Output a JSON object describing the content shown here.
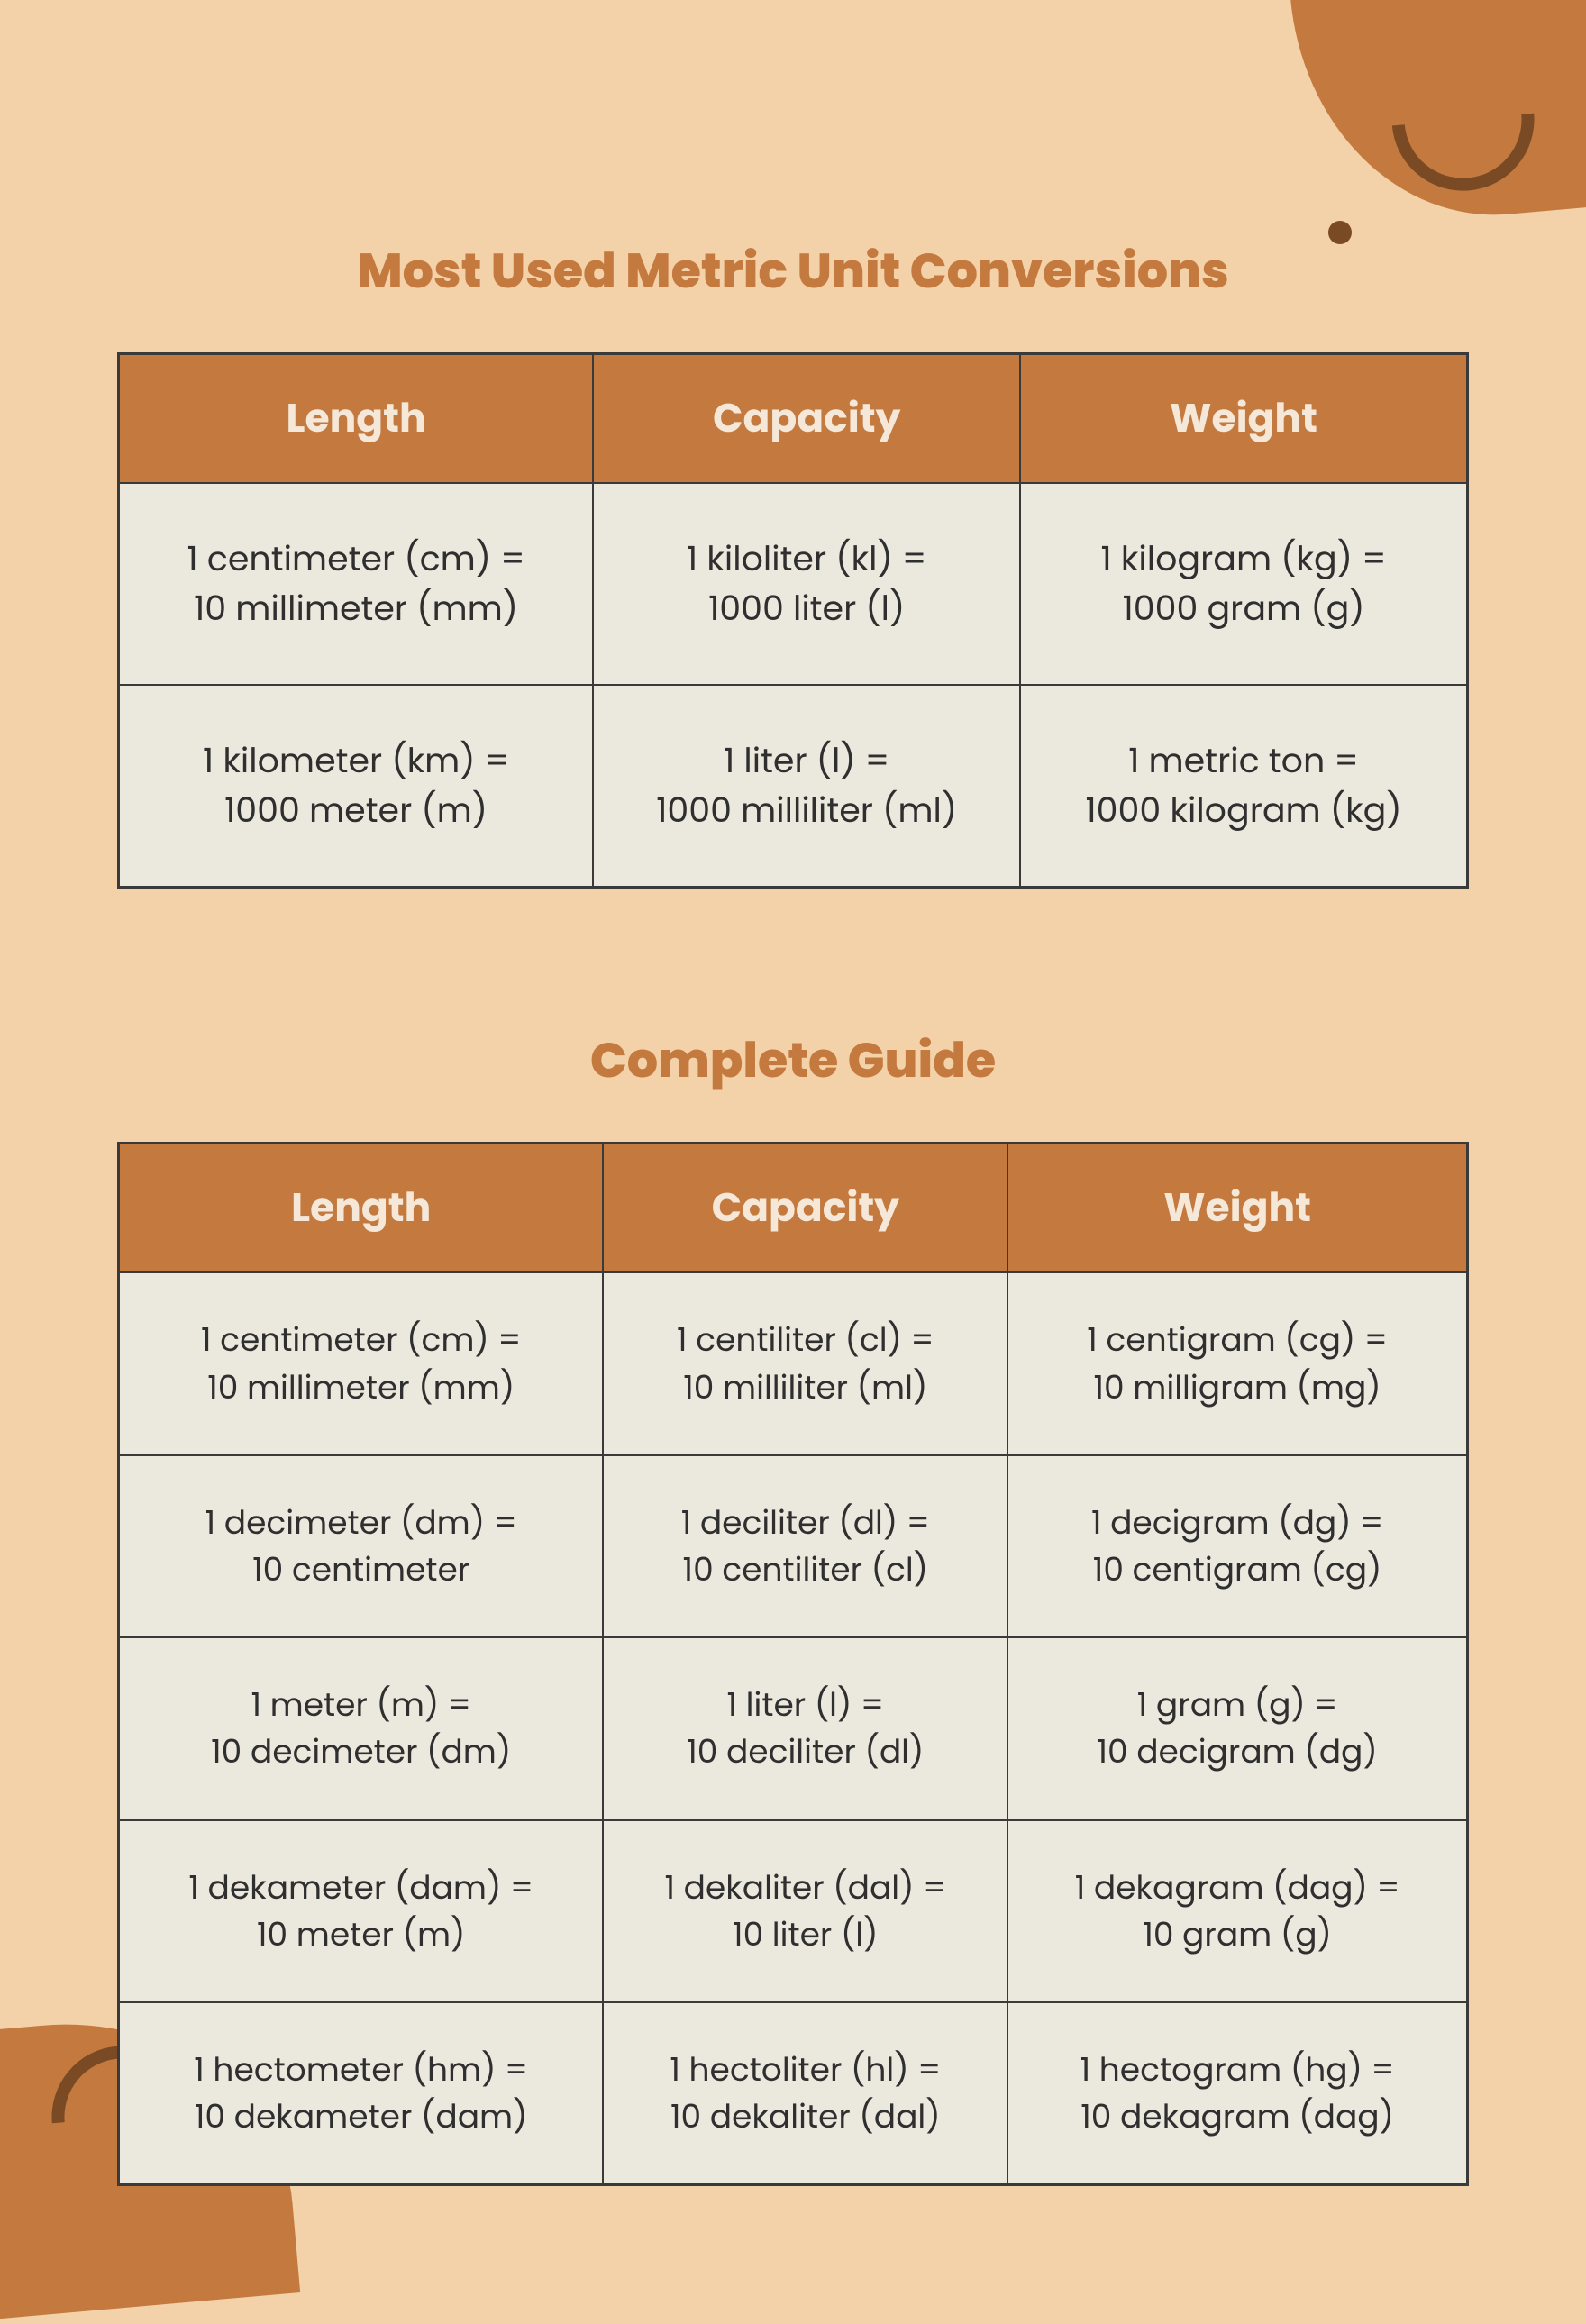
{
  "colors": {
    "page_bg": "#f3d1a9",
    "accent": "#c47a3f",
    "accent_dark": "#7a4a24",
    "cell_bg": "#ebe8de",
    "header_text": "#f5e8d8",
    "body_text": "#2f2f2f",
    "border": "#3a3a3a"
  },
  "typography": {
    "title_fontsize": 54,
    "title_weight": 800,
    "header_fontsize": 44,
    "header_weight": 700,
    "cell_fontsize_table1": 38,
    "cell_fontsize_table2": 36
  },
  "section1": {
    "title": "Most Used Metric Unit Conversions",
    "type": "table",
    "columns": [
      "Length",
      "Capacity",
      "Weight"
    ],
    "rows": [
      [
        {
          "line1": "1 centimeter (cm) =",
          "line2": "10 millimeter (mm)"
        },
        {
          "line1": "1 kiloliter (kl) =",
          "line2": "1000 liter (l)"
        },
        {
          "line1": "1 kilogram (kg) =",
          "line2": "1000 gram (g)"
        }
      ],
      [
        {
          "line1": "1 kilometer (km) =",
          "line2": "1000 meter (m)"
        },
        {
          "line1": "1 liter (l) =",
          "line2": "1000 milliliter (ml)"
        },
        {
          "line1": "1 metric ton =",
          "line2": "1000 kilogram (kg)"
        }
      ]
    ]
  },
  "section2": {
    "title": "Complete Guide",
    "type": "table",
    "columns": [
      "Length",
      "Capacity",
      "Weight"
    ],
    "rows": [
      [
        {
          "line1": "1 centimeter (cm) =",
          "line2": "10 millimeter (mm)"
        },
        {
          "line1": "1 centiliter (cl) =",
          "line2": "10 milliliter (ml)"
        },
        {
          "line1": "1 centigram (cg) =",
          "line2": "10 milligram (mg)"
        }
      ],
      [
        {
          "line1": "1 decimeter (dm) =",
          "line2": "10 centimeter"
        },
        {
          "line1": "1 deciliter (dl) =",
          "line2": "10 centiliter (cl)"
        },
        {
          "line1": "1 decigram (dg) =",
          "line2": "10 centigram (cg)"
        }
      ],
      [
        {
          "line1": "1 meter (m) =",
          "line2": "10 decimeter (dm)"
        },
        {
          "line1": "1 liter (l) =",
          "line2": "10 deciliter (dl)"
        },
        {
          "line1": "1 gram (g) =",
          "line2": "10 decigram (dg)"
        }
      ],
      [
        {
          "line1": "1 dekameter (dam) =",
          "line2": "10 meter (m)"
        },
        {
          "line1": "1 dekaliter (dal) =",
          "line2": "10 liter (l)"
        },
        {
          "line1": "1 dekagram (dag) =",
          "line2": "10 gram (g)"
        }
      ],
      [
        {
          "line1": "1 hectometer (hm) =",
          "line2": "10 dekameter (dam)"
        },
        {
          "line1": "1 hectoliter (hl) =",
          "line2": "10 dekaliter (dal)"
        },
        {
          "line1": "1 hectogram (hg) =",
          "line2": "10 dekagram (dag)"
        }
      ]
    ]
  }
}
